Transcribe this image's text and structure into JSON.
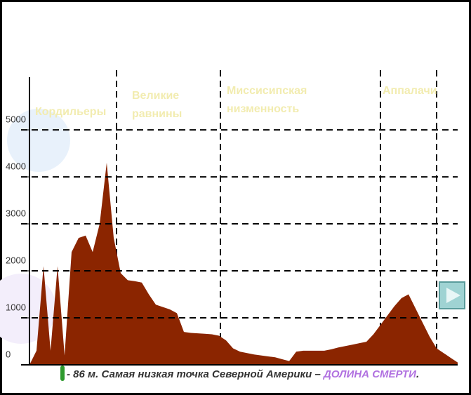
{
  "chart_data": {
    "type": "area",
    "color": "#8b2500",
    "values": [
      0,
      300,
      2100,
      300,
      2100,
      200,
      2400,
      2700,
      2750,
      2400,
      3000,
      4300,
      2700,
      1950,
      1800,
      1780,
      1750,
      1500,
      1280,
      1230,
      1180,
      1100,
      700,
      680,
      670,
      660,
      650,
      620,
      520,
      350,
      280,
      250,
      220,
      200,
      180,
      160,
      120,
      80,
      280,
      300,
      300,
      300,
      300,
      330,
      370,
      400,
      430,
      460,
      490,
      650,
      850,
      1050,
      1250,
      1420,
      1500,
      1200,
      900,
      600,
      350,
      250,
      150,
      50
    ],
    "ylim": [
      0,
      6300
    ],
    "yticks": [
      0,
      1000,
      2000,
      3000,
      4000,
      5000
    ],
    "grid": true,
    "regions": [
      [
        "Кордильеры"
      ],
      [
        "Великие",
        "равнины"
      ],
      [
        "Миссисипская",
        "низменность"
      ],
      [
        "Аппалачи"
      ]
    ],
    "caption": {
      "text": "- 86 м. Самая низкая точка Северной Америки – ",
      "highlight": "ДОЛИНА СМЕРТИ",
      "end": "."
    }
  }
}
